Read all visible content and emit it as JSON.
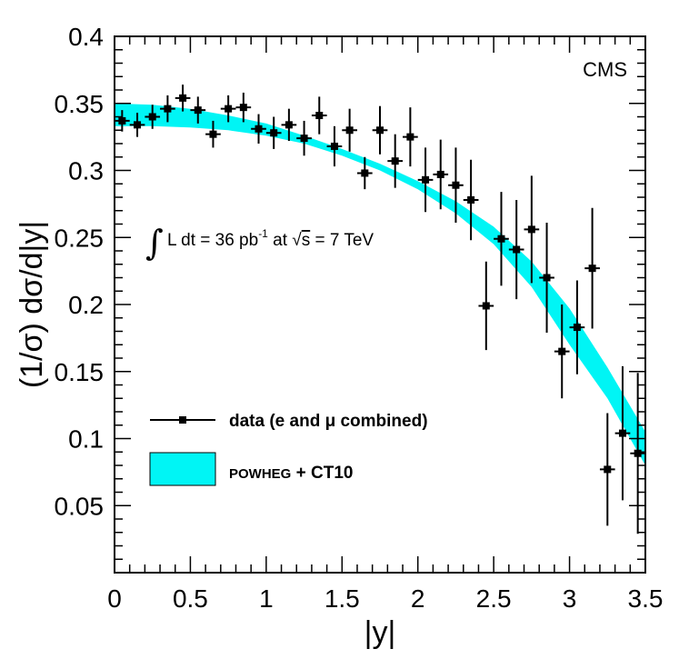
{
  "chart_data": {
    "type": "scatter",
    "title": "",
    "xlabel": "|y|",
    "ylabel": "(1/σ) dσ/d|y|",
    "xlim": [
      0,
      3.5
    ],
    "ylim": [
      0,
      0.4
    ],
    "x_ticks": [
      "0",
      "0.5",
      "1",
      "1.5",
      "2",
      "2.5",
      "3",
      "3.5"
    ],
    "y_ticks": [
      "0.05",
      "0.1",
      "0.15",
      "0.2",
      "0.25",
      "0.3",
      "0.35",
      "0.4"
    ],
    "x_tick_values": [
      0,
      0.5,
      1,
      1.5,
      2,
      2.5,
      3,
      3.5
    ],
    "y_tick_values": [
      0.05,
      0.1,
      0.15,
      0.2,
      0.25,
      0.3,
      0.35,
      0.4
    ],
    "experiment_label": "CMS",
    "annotation": {
      "integral": "∫",
      "prefix": "L dt = 36 pb",
      "exponent": "-1",
      "middle": " at ",
      "sqrt_sign": "√",
      "sqrt_arg": "s",
      "suffix": " = 7 TeV"
    },
    "legend": {
      "placement": "lower-left",
      "data_label": "data (e and μ combined)",
      "theory_label_prefix": "POWHEG",
      "theory_label_suffix": " + CT10",
      "theory_color": "#00f5f5"
    },
    "series": [
      {
        "name": "data (e and μ combined)",
        "x": [
          0.05,
          0.15,
          0.25,
          0.35,
          0.45,
          0.55,
          0.65,
          0.75,
          0.85,
          0.95,
          1.05,
          1.15,
          1.25,
          1.35,
          1.45,
          1.55,
          1.65,
          1.75,
          1.85,
          1.95,
          2.05,
          2.15,
          2.25,
          2.35,
          2.45,
          2.55,
          2.65,
          2.75,
          2.85,
          2.95,
          3.05,
          3.15,
          3.25,
          3.35,
          3.45
        ],
        "y": [
          0.337,
          0.334,
          0.34,
          0.346,
          0.354,
          0.345,
          0.327,
          0.346,
          0.347,
          0.331,
          0.328,
          0.334,
          0.324,
          0.341,
          0.318,
          0.33,
          0.298,
          0.33,
          0.307,
          0.325,
          0.293,
          0.297,
          0.289,
          0.278,
          0.199,
          0.249,
          0.241,
          0.256,
          0.22,
          0.165,
          0.183,
          0.227,
          0.077,
          0.104,
          0.089
        ],
        "y_err": [
          0.008,
          0.009,
          0.009,
          0.01,
          0.01,
          0.01,
          0.01,
          0.01,
          0.011,
          0.011,
          0.012,
          0.012,
          0.013,
          0.014,
          0.015,
          0.016,
          0.012,
          0.018,
          0.02,
          0.022,
          0.024,
          0.026,
          0.028,
          0.03,
          0.033,
          0.035,
          0.037,
          0.04,
          0.041,
          0.035,
          0.035,
          0.045,
          0.042,
          0.05,
          0.06
        ]
      },
      {
        "name": "POWHEG + CT10",
        "type": "band",
        "x": [
          0,
          0.25,
          0.5,
          0.75,
          1.0,
          1.25,
          1.5,
          1.75,
          2.0,
          2.25,
          2.5,
          2.75,
          3.0,
          3.25,
          3.5
        ],
        "y_low": [
          0.333,
          0.333,
          0.332,
          0.33,
          0.326,
          0.32,
          0.311,
          0.3,
          0.286,
          0.268,
          0.245,
          0.213,
          0.17,
          0.13,
          0.08
        ],
        "y_high": [
          0.35,
          0.349,
          0.346,
          0.341,
          0.335,
          0.326,
          0.316,
          0.305,
          0.292,
          0.277,
          0.258,
          0.232,
          0.197,
          0.153,
          0.105
        ]
      }
    ]
  }
}
